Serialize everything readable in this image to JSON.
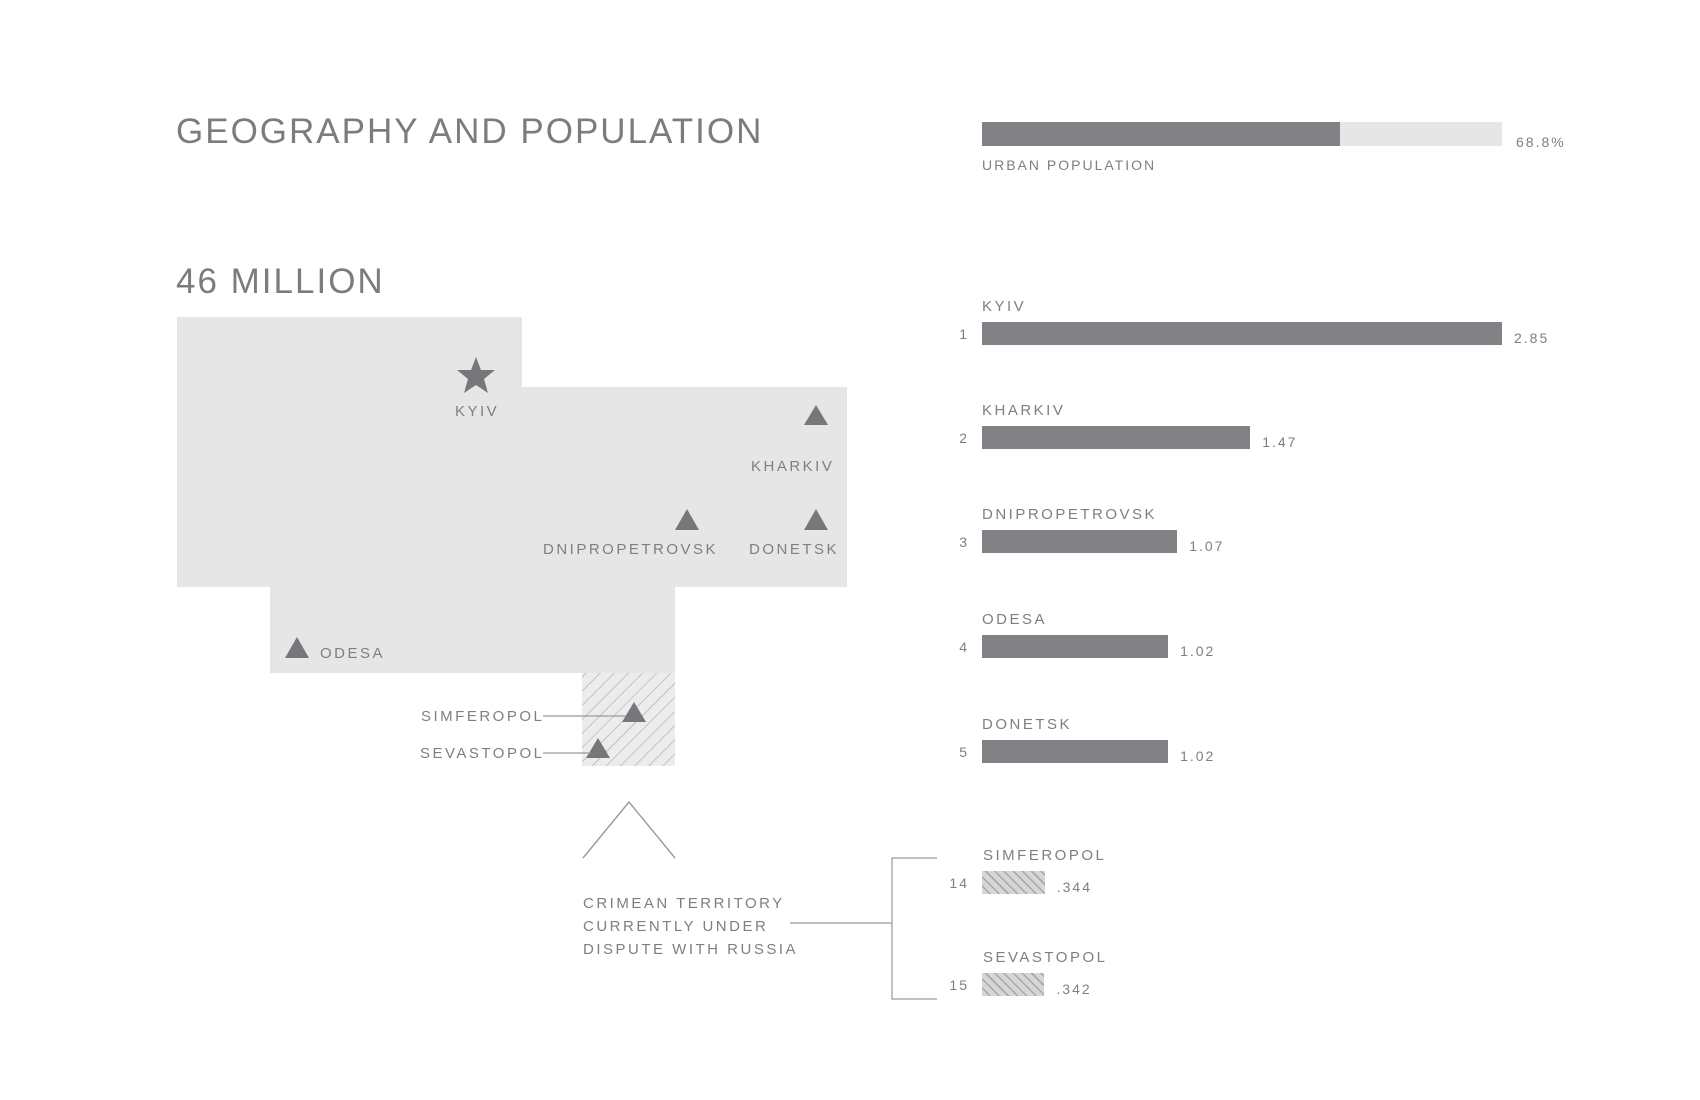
{
  "header": {
    "title": "GEOGRAPHY AND POPULATION",
    "population_title": "46 MILLION"
  },
  "urban": {
    "label": "URBAN POPULATION",
    "value_label": "68.8%",
    "fraction": 0.688,
    "bar_color": "#828286",
    "track_color": "#e6e6e7"
  },
  "map": {
    "cities": [
      {
        "name": "KYIV",
        "marker": "star-icon"
      },
      {
        "name": "KHARKIV",
        "marker": "triangle-icon"
      },
      {
        "name": "DNIPROPETROVSK",
        "marker": "triangle-icon"
      },
      {
        "name": "DONETSK",
        "marker": "triangle-icon"
      },
      {
        "name": "ODESA",
        "marker": "triangle-icon"
      },
      {
        "name": "SIMFEROPOL",
        "marker": "triangle-icon"
      },
      {
        "name": "SEVASTOPOL",
        "marker": "triangle-icon"
      }
    ],
    "crimea_note": [
      "CRIMEAN TERRITORY",
      "CURRENTLY UNDER",
      "DISPUTE WITH RUSSIA"
    ]
  },
  "chart_data": {
    "type": "bar",
    "orientation": "horizontal",
    "categories": [
      "KYIV",
      "KHARKIV",
      "DNIPROPETROVSK",
      "ODESA",
      "DONETSK",
      "SIMFEROPOL",
      "SEVASTOPOL"
    ],
    "ranks": [
      "1",
      "2",
      "3",
      "4",
      "5",
      "14",
      "15"
    ],
    "values": [
      2.85,
      1.47,
      1.07,
      1.02,
      1.02,
      0.344,
      0.342
    ],
    "value_labels": [
      "2.85",
      "1.47",
      "1.07",
      "1.02",
      "1.02",
      ".344",
      ".342"
    ],
    "disputed": [
      false,
      false,
      false,
      false,
      false,
      true,
      true
    ],
    "xlim": [
      0,
      2.85
    ],
    "bar_color": "#828286",
    "disputed_fill": "#d6d6d7",
    "disputed_hatch": "#a8a8ab"
  }
}
